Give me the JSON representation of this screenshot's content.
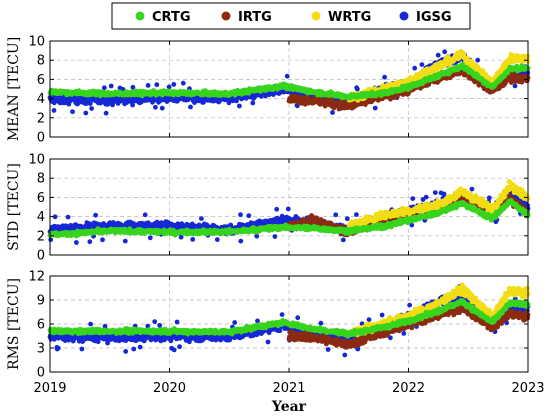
{
  "chart_data": {
    "type": "scatter",
    "xlabel": "Year",
    "x_ticks": [
      2019,
      2020,
      2021,
      2022,
      2023
    ],
    "xlim": [
      2019,
      2023
    ],
    "legend": {
      "placement": "top",
      "entries": [
        {
          "name": "CRTG",
          "color": "#38d41e"
        },
        {
          "name": "IRTG",
          "color": "#8b2b12"
        },
        {
          "name": "WRTG",
          "color": "#f2dc14"
        },
        {
          "name": "IGSG",
          "color": "#1628d6"
        }
      ]
    },
    "panels": [
      {
        "ylabel": "MEAN [TECU]",
        "ylim": [
          0,
          10
        ],
        "y_ticks": [
          0,
          2,
          4,
          6,
          8,
          10
        ],
        "grid": true,
        "series": [
          {
            "name": "IGSG",
            "x": [
              2019.0,
              2019.5,
              2020.0,
              2020.5,
              2020.95,
              2021.2,
              2021.5,
              2021.8,
              2022.0,
              2022.25,
              2022.45,
              2022.7,
              2022.85,
              2023.0
            ],
            "y": [
              3.9,
              3.9,
              4.1,
              4.0,
              5.0,
              4.4,
              3.6,
              5.0,
              5.5,
              7.6,
              8.3,
              5.0,
              6.8,
              6.8
            ]
          },
          {
            "name": "IRTG",
            "x": [
              2021.0,
              2021.2,
              2021.5,
              2021.8,
              2022.0,
              2022.25,
              2022.45,
              2022.7,
              2022.85,
              2023.0
            ],
            "y": [
              4.0,
              3.8,
              3.2,
              4.3,
              4.9,
              6.2,
              7.0,
              4.8,
              6.2,
              6.0
            ]
          },
          {
            "name": "WRTG",
            "x": [
              2021.5,
              2021.8,
              2022.0,
              2022.25,
              2022.45,
              2022.7,
              2022.85,
              2023.0
            ],
            "y": [
              4.0,
              5.0,
              5.8,
              7.4,
              8.5,
              5.6,
              8.2,
              8.2
            ]
          },
          {
            "name": "CRTG",
            "x": [
              2019.0,
              2019.5,
              2020.0,
              2020.5,
              2020.95,
              2021.2,
              2021.5,
              2021.8,
              2022.0,
              2022.25,
              2022.45,
              2022.7,
              2022.85,
              2023.0
            ],
            "y": [
              4.7,
              4.5,
              4.6,
              4.5,
              5.3,
              4.7,
              4.2,
              4.6,
              5.2,
              6.4,
              7.4,
              5.2,
              7.1,
              7.2
            ]
          }
        ]
      },
      {
        "ylabel": "STD [TECU]",
        "ylim": [
          0,
          10
        ],
        "y_ticks": [
          0,
          2,
          4,
          6,
          8,
          10
        ],
        "grid": true,
        "series": [
          {
            "name": "IGSG",
            "x": [
              2019.0,
              2019.5,
              2020.0,
              2020.5,
              2020.95,
              2021.2,
              2021.5,
              2021.8,
              2022.0,
              2022.25,
              2022.45,
              2022.7,
              2022.85,
              2023.0
            ],
            "y": [
              2.6,
              3.0,
              3.0,
              2.6,
              3.6,
              3.4,
              2.6,
              4.0,
              4.6,
              5.3,
              6.0,
              4.4,
              6.4,
              5.0
            ]
          },
          {
            "name": "IRTG",
            "x": [
              2021.0,
              2021.2,
              2021.5,
              2021.8,
              2022.0,
              2022.25,
              2022.45,
              2022.7,
              2022.85,
              2023.0
            ],
            "y": [
              2.9,
              3.6,
              2.4,
              3.8,
              4.4,
              4.6,
              6.0,
              4.3,
              5.8,
              4.3
            ]
          },
          {
            "name": "WRTG",
            "x": [
              2021.5,
              2021.8,
              2022.0,
              2022.25,
              2022.45,
              2022.7,
              2022.85,
              2023.0
            ],
            "y": [
              3.0,
              4.2,
              4.6,
              5.2,
              6.6,
              4.8,
              7.2,
              6.0
            ]
          },
          {
            "name": "CRTG",
            "x": [
              2019.0,
              2019.5,
              2020.0,
              2020.5,
              2020.95,
              2021.2,
              2021.5,
              2021.8,
              2022.0,
              2022.25,
              2022.45,
              2022.7,
              2022.85,
              2023.0
            ],
            "y": [
              2.1,
              2.5,
              2.4,
              2.4,
              2.9,
              2.8,
              2.5,
              3.0,
              3.6,
              4.4,
              5.4,
              3.8,
              5.6,
              4.2
            ]
          }
        ]
      },
      {
        "ylabel": "RMS [TECU]",
        "ylim": [
          0,
          12
        ],
        "y_ticks": [
          0,
          3,
          6,
          9,
          12
        ],
        "grid": true,
        "series": [
          {
            "name": "IGSG",
            "x": [
              2019.0,
              2019.5,
              2020.0,
              2020.5,
              2020.95,
              2021.2,
              2021.5,
              2021.8,
              2022.0,
              2022.25,
              2022.45,
              2022.7,
              2022.85,
              2023.0
            ],
            "y": [
              4.5,
              4.3,
              4.5,
              4.4,
              5.8,
              4.8,
              3.8,
              5.8,
              6.8,
              8.8,
              9.3,
              6.0,
              8.0,
              7.8
            ]
          },
          {
            "name": "IRTG",
            "x": [
              2021.0,
              2021.2,
              2021.5,
              2021.8,
              2022.0,
              2022.25,
              2022.45,
              2022.7,
              2022.85,
              2023.0
            ],
            "y": [
              4.6,
              4.3,
              3.4,
              5.0,
              5.9,
              7.2,
              8.0,
              5.6,
              7.3,
              6.8
            ]
          },
          {
            "name": "WRTG",
            "x": [
              2021.5,
              2021.8,
              2022.0,
              2022.25,
              2022.45,
              2022.7,
              2022.85,
              2023.0
            ],
            "y": [
              4.8,
              6.1,
              6.9,
              8.6,
              10.4,
              6.8,
              10.2,
              9.8
            ]
          },
          {
            "name": "CRTG",
            "x": [
              2019.0,
              2019.5,
              2020.0,
              2020.5,
              2020.95,
              2021.2,
              2021.5,
              2021.8,
              2022.0,
              2022.25,
              2022.45,
              2022.7,
              2022.85,
              2023.0
            ],
            "y": [
              5.1,
              5.1,
              5.1,
              5.0,
              6.2,
              5.4,
              4.8,
              5.6,
              6.4,
              7.6,
              8.8,
              6.2,
              8.6,
              8.4
            ]
          }
        ]
      }
    ]
  }
}
